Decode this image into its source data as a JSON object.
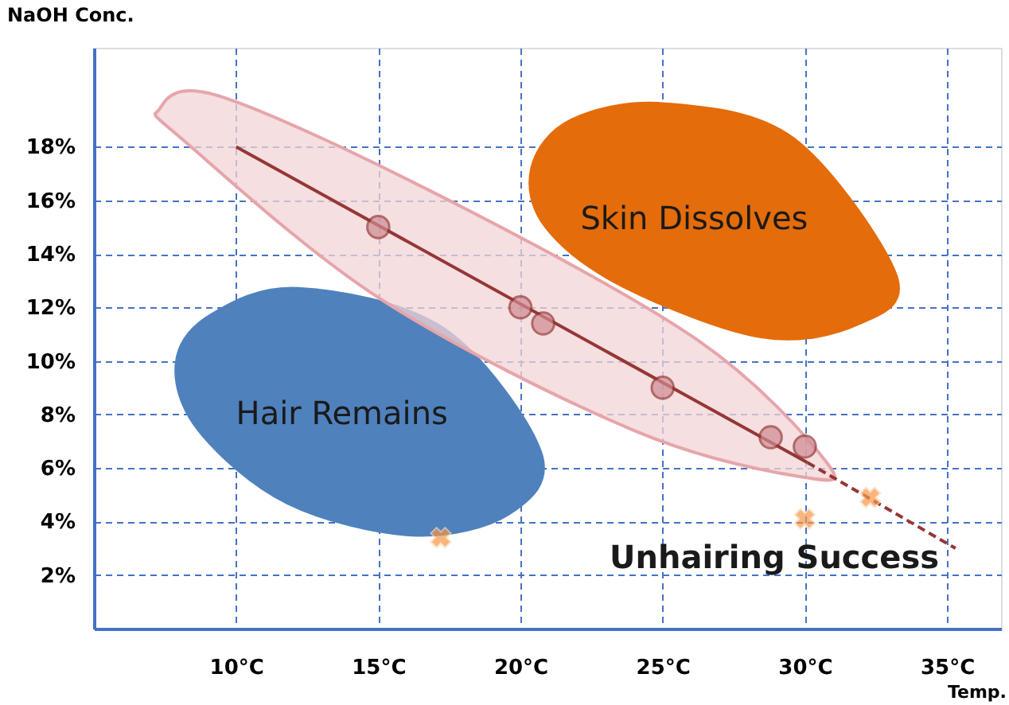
{
  "chart_data": {
    "type": "line",
    "xlabel": "Temp.",
    "ylabel": "NaOH Conc.",
    "xlim": [
      5,
      36.9
    ],
    "ylim": [
      0,
      21.7
    ],
    "xticks": [
      {
        "value": 10,
        "label": "10°C"
      },
      {
        "value": 15,
        "label": "15°C"
      },
      {
        "value": 20,
        "label": "20°C"
      },
      {
        "value": 25,
        "label": "25°C"
      },
      {
        "value": 30,
        "label": "30°C"
      },
      {
        "value": 35,
        "label": "35°C"
      }
    ],
    "yticks": [
      {
        "value": 2,
        "label": "2%"
      },
      {
        "value": 4,
        "label": "4%"
      },
      {
        "value": 6,
        "label": "6%"
      },
      {
        "value": 8,
        "label": "8%"
      },
      {
        "value": 10,
        "label": "10%"
      },
      {
        "value": 12,
        "label": "12%"
      },
      {
        "value": 14,
        "label": "14%"
      },
      {
        "value": 16,
        "label": "16%"
      },
      {
        "value": 18,
        "label": "18%"
      }
    ],
    "grid": true,
    "series": [
      {
        "name": "Hair Remains",
        "type": "area",
        "color": "#4f81bd",
        "x": [
          7.9,
          9.1,
          12.2,
          17.3,
          20.7,
          19.6,
          16.2,
          11.8,
          8.7
        ],
        "values": [
          9.9,
          11.7,
          12.7,
          11.2,
          6.6,
          4.3,
          3.5,
          4.7,
          7.4
        ]
      },
      {
        "name": "Skin Dissolves",
        "type": "area",
        "color": "#e46c0a",
        "x": [
          20.4,
          21.8,
          25.1,
          29.6,
          33.2,
          31.9,
          28.5,
          23.6,
          20.9
        ],
        "values": [
          17.2,
          19.0,
          19.6,
          18.3,
          13.2,
          11.4,
          10.9,
          12.8,
          15.0
        ]
      },
      {
        "type": "area",
        "color": "#f2d4d6",
        "x": [
          7.3,
          9.4,
          17.3,
          26.2,
          30.7,
          30.0,
          24.0,
          15.1,
          8.2
        ],
        "values": [
          19.4,
          19.9,
          16.1,
          10.8,
          6.3,
          5.65,
          7.4,
          12.3,
          18.2
        ]
      },
      {
        "color": "#953735",
        "line_style": "solid",
        "x": [
          10,
          30.1
        ],
        "values": [
          18,
          6.2
        ]
      },
      {
        "color": "#953735",
        "line_style": "dashed",
        "x": [
          30.1,
          35.3
        ],
        "values": [
          6.2,
          3.0
        ]
      },
      {
        "type": "scatter",
        "color": "#d08a92",
        "marker": "circle",
        "x": [
          15,
          20,
          20.8,
          25,
          28.8,
          30
        ],
        "values": [
          15,
          12,
          11.4,
          9,
          7.15,
          6.8
        ]
      },
      {
        "type": "scatter",
        "color": "#f79646",
        "marker": "cross",
        "x": [
          17.2,
          30,
          32.3
        ],
        "values": [
          3.4,
          4.1,
          4.9
        ]
      }
    ],
    "annotations": [
      "Unhairing Success"
    ]
  }
}
